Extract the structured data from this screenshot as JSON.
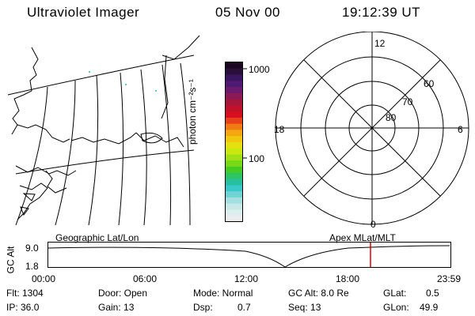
{
  "header": {
    "instrument": "Ultraviolet Imager",
    "date": "05 Nov 00",
    "time": "19:12:39 UT"
  },
  "colorbar": {
    "unit_label": "photon cm⁻²s⁻¹",
    "tick_high": "1000",
    "tick_mid": "100",
    "colors": [
      "#1a0820",
      "#2a0f3a",
      "#3b1560",
      "#4d1a74",
      "#6b1b6e",
      "#8a1b56",
      "#a4163a",
      "#c0102a",
      "#d60e1f",
      "#e8401a",
      "#f27a14",
      "#f5a712",
      "#f2c80f",
      "#e5e00f",
      "#c8e80f",
      "#a0e014",
      "#78d818",
      "#44cc22",
      "#2cc460",
      "#28c0a0",
      "#38c8c8",
      "#70d4d4",
      "#a4e0e0",
      "#c8e8e8",
      "#dcefef",
      "#ececec"
    ]
  },
  "polar": {
    "lat_80": "80",
    "lat_70": "70",
    "lat_60": "60",
    "mlt_12": "12",
    "mlt_18": "18",
    "mlt_6": "6",
    "mlt_0": "0"
  },
  "timeline": {
    "left_label": "Geographic Lat/Lon",
    "right_label": "Apex MLat/MLT",
    "axis_label": "GC Alt",
    "y_top": "9.0",
    "y_bottom": "1.8",
    "x_ticks": [
      "00:00",
      "06:00",
      "12:00",
      "18:00",
      "23:59"
    ],
    "marker_color": "#e00000"
  },
  "status": {
    "flt": "Flt: 1304",
    "ip": "IP: 36.0",
    "door": "Door: Open",
    "gain": "Gain: 13",
    "mode": "Mode: Normal",
    "dsp": "Dsp:",
    "dsp_val": "0.7",
    "gcalt": "GC Alt: 8.0 Re",
    "seq": "Seq: 13",
    "glat": "GLat:",
    "glat_val": "0.5",
    "glon": "GLon:",
    "glon_val": "49.9"
  }
}
